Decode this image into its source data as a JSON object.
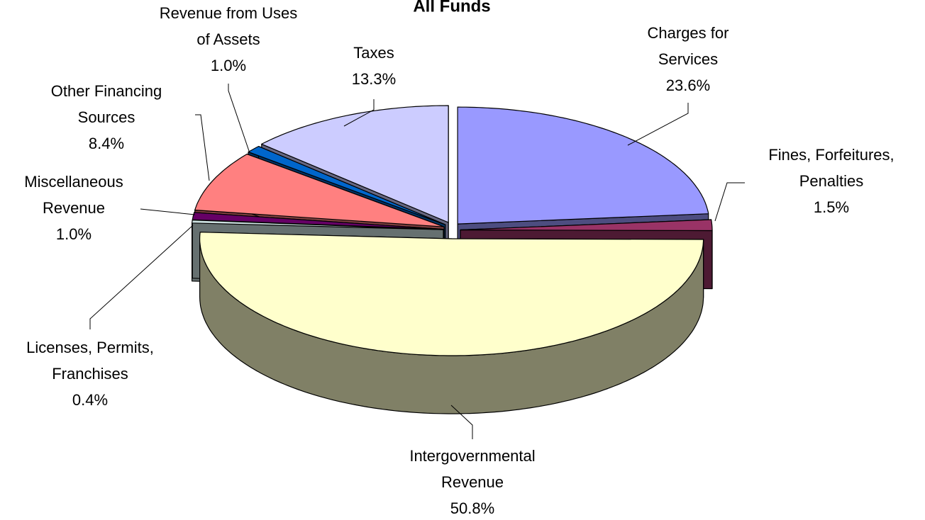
{
  "chart_data": {
    "type": "pie",
    "title": "All Funds",
    "categories": [
      [
        "Charges for",
        "Services"
      ],
      [
        "Fines, Forfeitures,",
        "Penalties"
      ],
      [
        "Intergovernmental",
        "Revenue"
      ],
      [
        "Licenses, Permits,",
        "Franchises"
      ],
      [
        "Miscellaneous",
        "Revenue"
      ],
      [
        "Other Financing",
        "Sources"
      ],
      [
        "Revenue from Uses",
        "of Assets"
      ],
      [
        "Taxes"
      ]
    ],
    "values": [
      23.6,
      1.5,
      50.8,
      0.4,
      1.0,
      8.4,
      1.0,
      13.3
    ],
    "value_labels": [
      "23.6%",
      "1.5%",
      "50.8%",
      "0.4%",
      "1.0%",
      "8.4%",
      "1.0%",
      "13.3%"
    ],
    "colors": [
      "#9999ff",
      "#993366",
      "#ffffcc",
      "#cce0e0",
      "#660066",
      "#ff8080",
      "#0066cc",
      "#ccccff"
    ]
  }
}
